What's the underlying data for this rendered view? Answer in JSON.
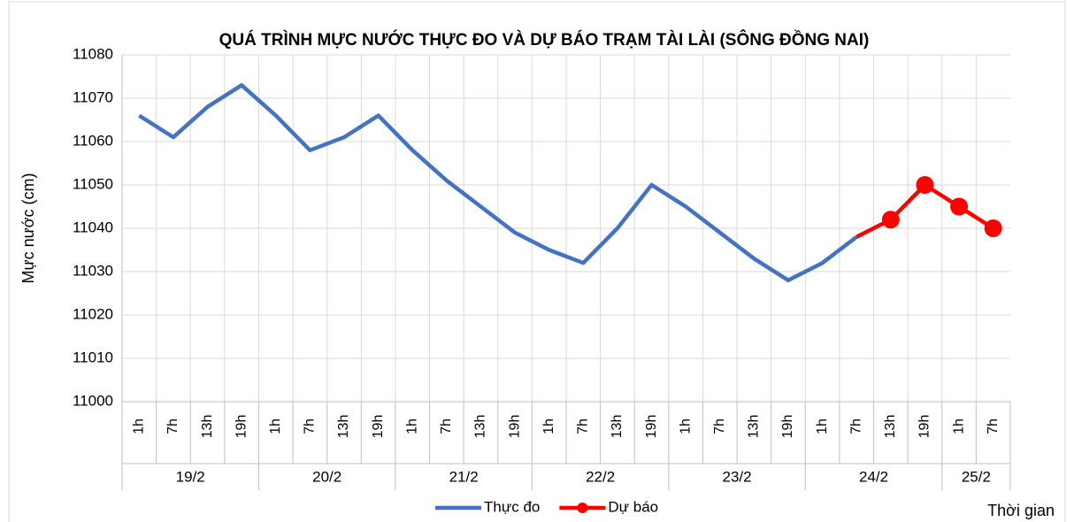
{
  "chart_data": {
    "type": "line",
    "title": "QUÁ TRÌNH MỰC NƯỚC THỰC ĐO VÀ DỰ BÁO TRẠM TÀI LÀI (SÔNG ĐỒNG NAI)",
    "ylabel": "Mực nước (cm)",
    "xlabel": "Thời gian",
    "groups": [
      {
        "label": "19/2",
        "categories": [
          "1h",
          "7h",
          "13h",
          "19h"
        ]
      },
      {
        "label": "20/2",
        "categories": [
          "1h",
          "7h",
          "13h",
          "19h"
        ]
      },
      {
        "label": "21/2",
        "categories": [
          "1h",
          "7h",
          "13h",
          "19h"
        ]
      },
      {
        "label": "22/2",
        "categories": [
          "1h",
          "7h",
          "13h",
          "19h"
        ]
      },
      {
        "label": "23/2",
        "categories": [
          "1h",
          "7h",
          "13h",
          "19h"
        ]
      },
      {
        "label": "24/2",
        "categories": [
          "1h",
          "7h",
          "13h",
          "19h"
        ]
      },
      {
        "label": "25/2",
        "categories": [
          "1h",
          "7h"
        ]
      }
    ],
    "series": [
      {
        "name": "Thực đo",
        "color": "#4472c4",
        "marker": false,
        "values": [
          11066,
          11061,
          11068,
          11073,
          11066,
          11058,
          11061,
          11066,
          11058,
          11051,
          11045,
          11039,
          11035,
          11032,
          11040,
          11050,
          11045,
          11039,
          11033,
          11028,
          11032,
          11038,
          null,
          null,
          null,
          null
        ]
      },
      {
        "name": "Dự báo",
        "color": "#ff0000",
        "marker": true,
        "values": [
          null,
          null,
          null,
          null,
          null,
          null,
          null,
          null,
          null,
          null,
          null,
          null,
          null,
          null,
          null,
          null,
          null,
          null,
          null,
          null,
          null,
          11038,
          11042,
          11050,
          11045,
          11040
        ]
      }
    ],
    "ylim": [
      11000,
      11080
    ],
    "yticks": [
      11000,
      11010,
      11020,
      11030,
      11040,
      11050,
      11060,
      11070,
      11080
    ],
    "grid": true,
    "legend": "bottom"
  }
}
